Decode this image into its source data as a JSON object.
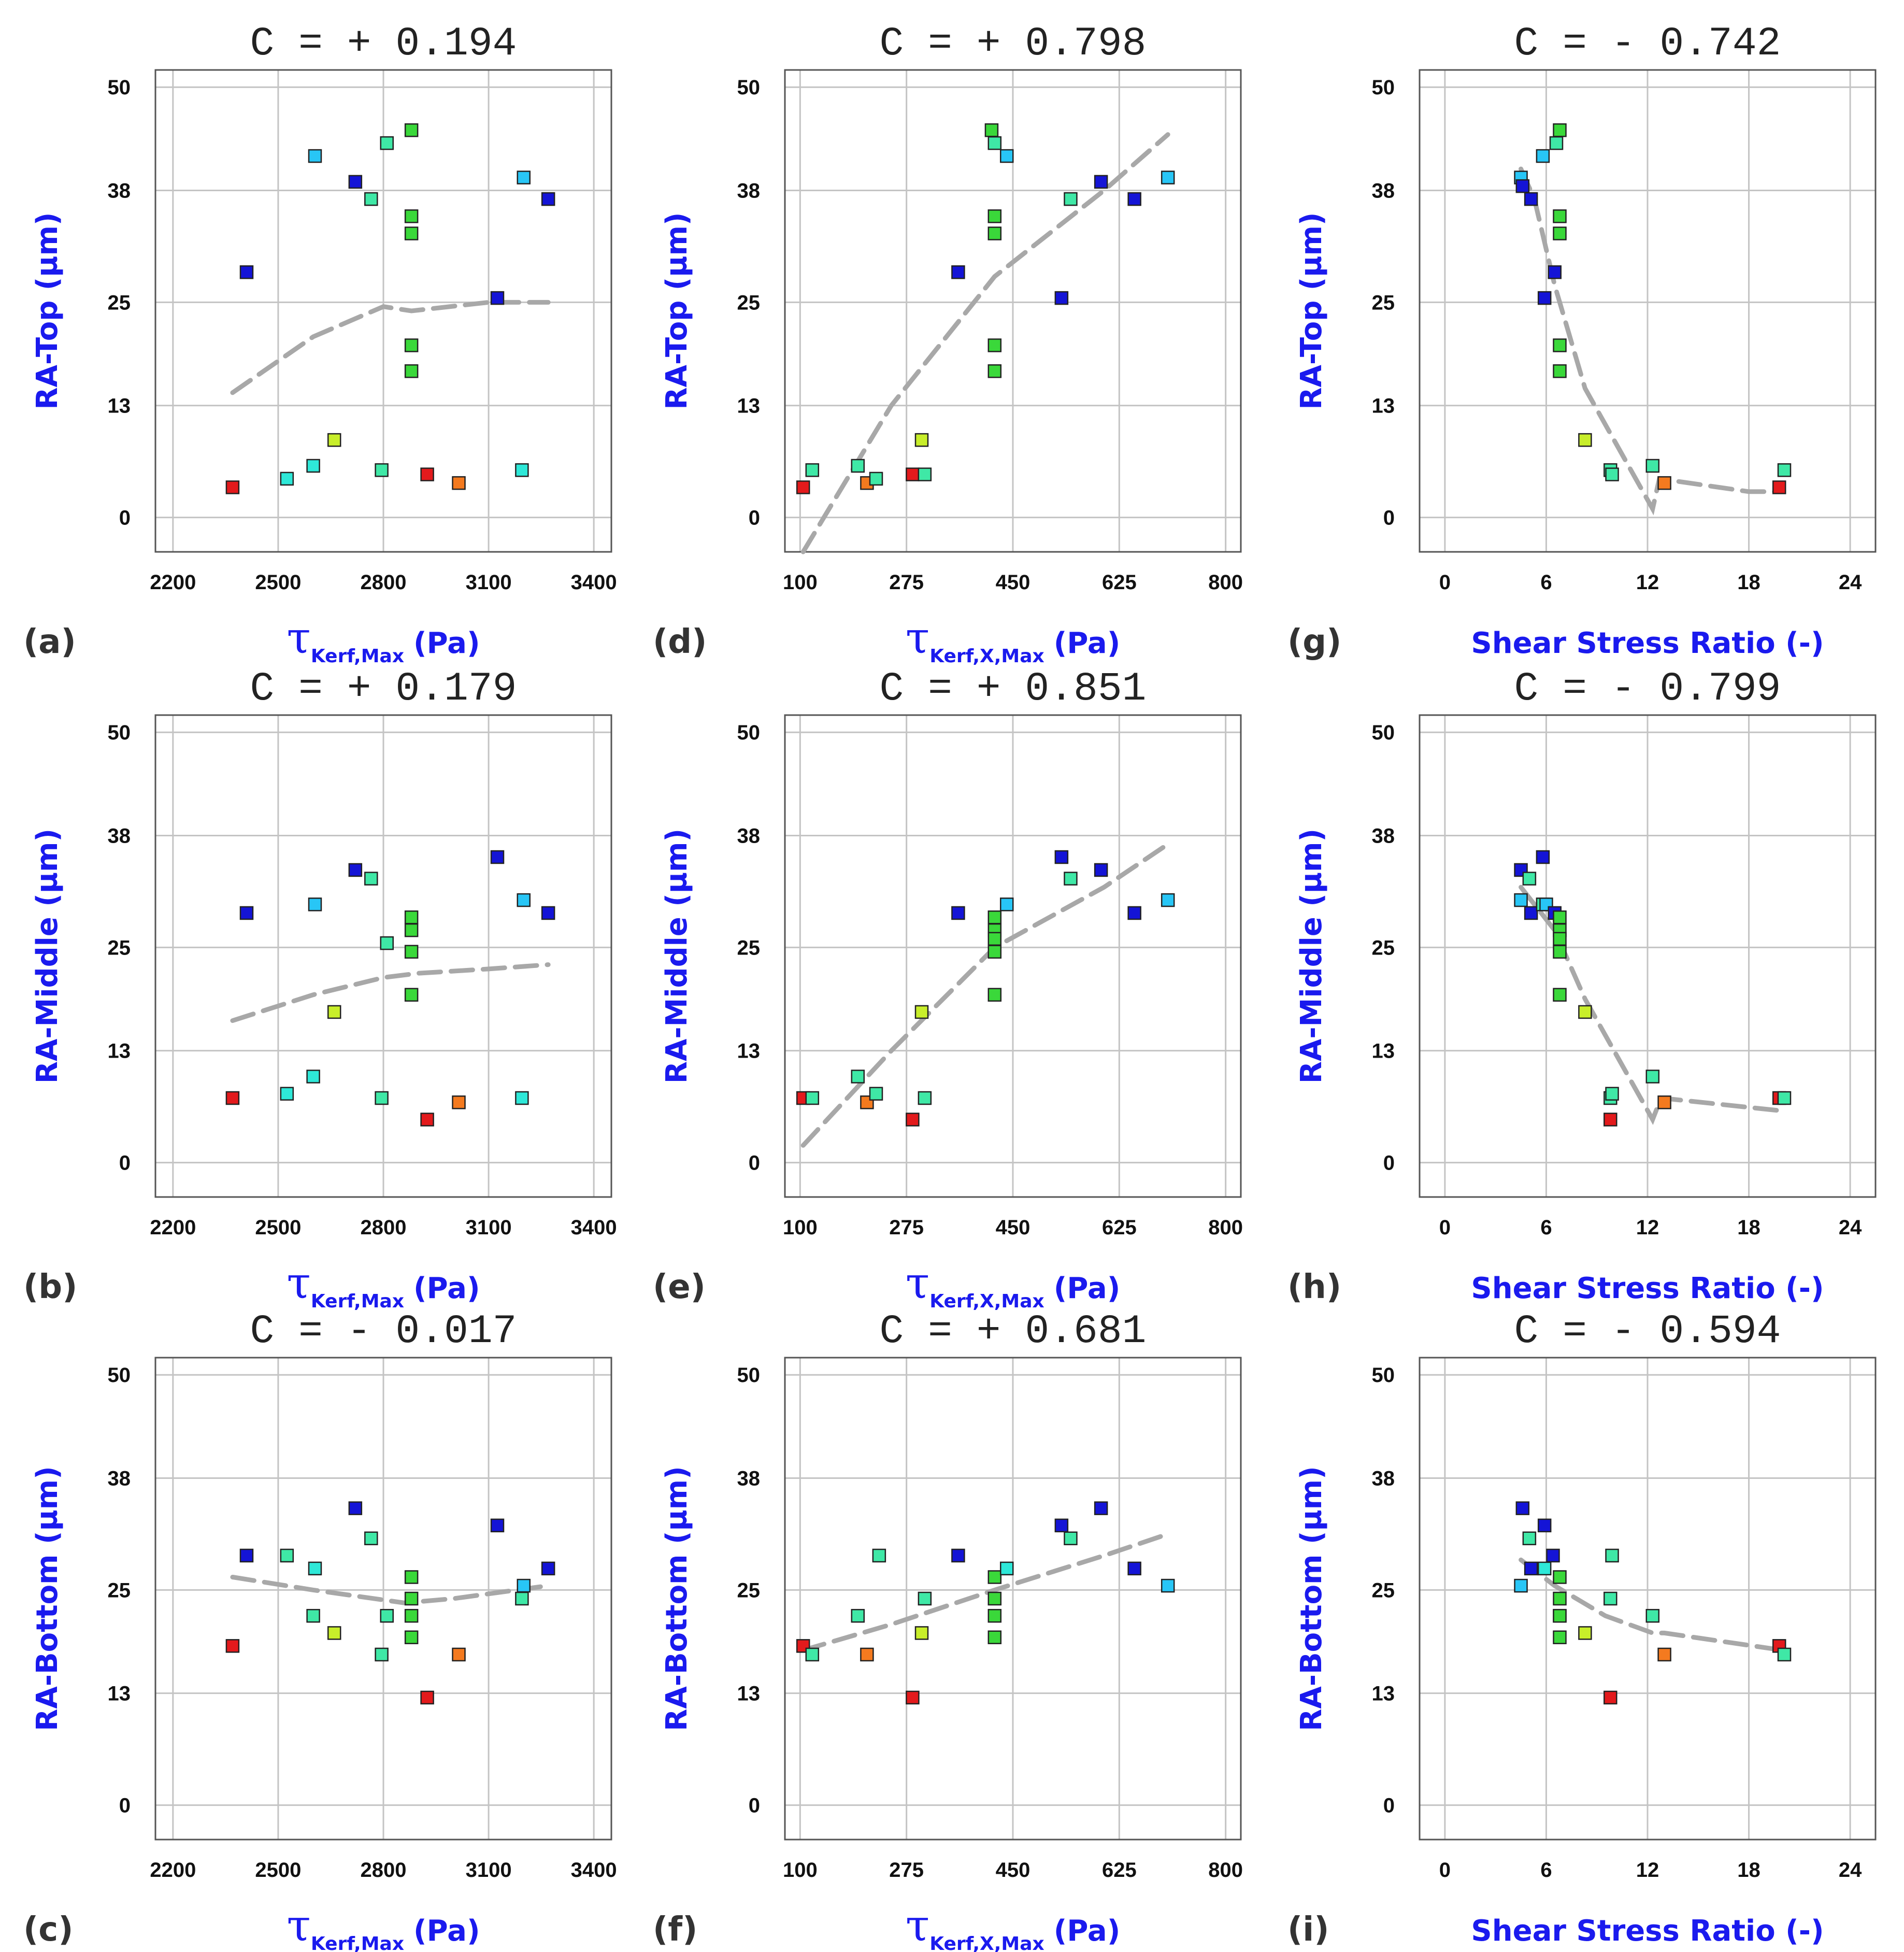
{
  "figure": {
    "x_groups": {
      "kerf_max": {
        "tau": "τ",
        "sub": "Kerf,Max",
        "unit": "(Pa)",
        "ticks": [
          2200,
          2500,
          2800,
          3100,
          3400
        ],
        "xlim": [
          2150,
          3450
        ]
      },
      "kerf_x_max": {
        "tau": "τ",
        "sub": "Kerf,X,Max",
        "unit": "(Pa)",
        "ticks": [
          100,
          275,
          450,
          625,
          800
        ],
        "xlim": [
          75,
          825
        ]
      },
      "ratio": {
        "text": "Shear Stress Ratio (-)",
        "ticks": [
          0,
          6,
          12,
          18,
          24
        ],
        "xlim": [
          -1.5,
          25.5
        ]
      }
    },
    "y_labels": [
      "RA-Top (µm)",
      "RA-Middle (µm)",
      "RA-Bottom (µm)"
    ],
    "y_ticks": [
      0,
      13,
      25,
      38,
      50
    ],
    "ylim": [
      -4,
      52
    ],
    "trend_color": "#a8a8a8"
  },
  "chart_data": [
    {
      "id": "a",
      "label": "(a)",
      "type": "scatter",
      "title": "C = + 0.194",
      "xgroup": "kerf_max",
      "row": 0,
      "points": [
        [
          2370,
          3.5,
          "red"
        ],
        [
          2410,
          28.5,
          "blue"
        ],
        [
          2525,
          4.5,
          "cyan"
        ],
        [
          2600,
          6,
          "cyan"
        ],
        [
          2605,
          42,
          "lightblue"
        ],
        [
          2660,
          9,
          "yellow"
        ],
        [
          2720,
          39,
          "blue"
        ],
        [
          2765,
          37,
          "teal"
        ],
        [
          2795,
          5.5,
          "teal"
        ],
        [
          2810,
          43.5,
          "teal"
        ],
        [
          2880,
          45,
          "green"
        ],
        [
          2880,
          35,
          "green"
        ],
        [
          2880,
          33,
          "green"
        ],
        [
          2880,
          20,
          "green"
        ],
        [
          2880,
          17,
          "green"
        ],
        [
          2925,
          5,
          "red"
        ],
        [
          3015,
          4,
          "orange"
        ],
        [
          3125,
          25.5,
          "blue"
        ],
        [
          3195,
          5.5,
          "cyan"
        ],
        [
          3200,
          39.5,
          "lightblue"
        ],
        [
          3270,
          37,
          "blue"
        ]
      ],
      "trend": [
        [
          2370,
          14.5
        ],
        [
          2600,
          21
        ],
        [
          2800,
          24.5
        ],
        [
          2880,
          24
        ],
        [
          3100,
          25
        ],
        [
          3270,
          25
        ]
      ]
    },
    {
      "id": "b",
      "label": "(b)",
      "type": "scatter",
      "title": "C = + 0.179",
      "xgroup": "kerf_max",
      "row": 1,
      "points": [
        [
          2370,
          7.5,
          "red"
        ],
        [
          2410,
          29,
          "blue"
        ],
        [
          2525,
          8,
          "cyan"
        ],
        [
          2600,
          10,
          "cyan"
        ],
        [
          2605,
          30,
          "lightblue"
        ],
        [
          2660,
          17.5,
          "yellow"
        ],
        [
          2720,
          34,
          "blue"
        ],
        [
          2765,
          33,
          "teal"
        ],
        [
          2795,
          7.5,
          "teal"
        ],
        [
          2810,
          25.5,
          "teal"
        ],
        [
          2880,
          28.5,
          "green"
        ],
        [
          2880,
          27,
          "green"
        ],
        [
          2880,
          24.5,
          "green"
        ],
        [
          2880,
          19.5,
          "green"
        ],
        [
          2925,
          5,
          "red"
        ],
        [
          3015,
          7,
          "orange"
        ],
        [
          3125,
          35.5,
          "blue"
        ],
        [
          3195,
          7.5,
          "cyan"
        ],
        [
          3200,
          30.5,
          "lightblue"
        ],
        [
          3270,
          29,
          "blue"
        ]
      ],
      "trend": [
        [
          2370,
          16.5
        ],
        [
          2600,
          19.5
        ],
        [
          2800,
          21.5
        ],
        [
          2900,
          22
        ],
        [
          3100,
          22.5
        ],
        [
          3270,
          23
        ]
      ]
    },
    {
      "id": "c",
      "label": "(c)",
      "type": "scatter",
      "title": "C = - 0.017",
      "xgroup": "kerf_max",
      "row": 2,
      "points": [
        [
          2370,
          18.5,
          "red"
        ],
        [
          2410,
          29,
          "blue"
        ],
        [
          2525,
          29,
          "teal"
        ],
        [
          2600,
          22,
          "teal"
        ],
        [
          2605,
          27.5,
          "cyan"
        ],
        [
          2660,
          20,
          "yellow"
        ],
        [
          2720,
          34.5,
          "blue"
        ],
        [
          2765,
          31,
          "teal"
        ],
        [
          2795,
          17.5,
          "teal"
        ],
        [
          2810,
          22,
          "teal"
        ],
        [
          2880,
          26.5,
          "green"
        ],
        [
          2880,
          24,
          "green"
        ],
        [
          2880,
          22,
          "green"
        ],
        [
          2880,
          19.5,
          "green"
        ],
        [
          2925,
          12.5,
          "red"
        ],
        [
          3015,
          17.5,
          "orange"
        ],
        [
          3125,
          32.5,
          "blue"
        ],
        [
          3195,
          24,
          "teal"
        ],
        [
          3200,
          25.5,
          "lightblue"
        ],
        [
          3270,
          27.5,
          "blue"
        ]
      ],
      "trend": [
        [
          2370,
          26.5
        ],
        [
          2600,
          25
        ],
        [
          2860,
          23.5
        ],
        [
          3000,
          24
        ],
        [
          3270,
          25.5
        ]
      ]
    },
    {
      "id": "d",
      "label": "(d)",
      "type": "scatter",
      "title": "C = + 0.798",
      "xgroup": "kerf_x_max",
      "row": 0,
      "points": [
        [
          105,
          3.5,
          "red"
        ],
        [
          120,
          5.5,
          "teal"
        ],
        [
          195,
          6,
          "teal"
        ],
        [
          210,
          4,
          "orange"
        ],
        [
          225,
          4.5,
          "teal"
        ],
        [
          285,
          5,
          "red"
        ],
        [
          300,
          9,
          "yellow"
        ],
        [
          305,
          5,
          "teal"
        ],
        [
          360,
          28.5,
          "blue"
        ],
        [
          415,
          45,
          "green"
        ],
        [
          420,
          43.5,
          "teal"
        ],
        [
          420,
          35,
          "green"
        ],
        [
          420,
          33,
          "green"
        ],
        [
          420,
          20,
          "green"
        ],
        [
          420,
          17,
          "green"
        ],
        [
          440,
          42,
          "lightblue"
        ],
        [
          530,
          25.5,
          "blue"
        ],
        [
          545,
          37,
          "teal"
        ],
        [
          595,
          39,
          "blue"
        ],
        [
          650,
          37,
          "blue"
        ],
        [
          705,
          39.5,
          "lightblue"
        ]
      ],
      "trend": [
        [
          105,
          -4
        ],
        [
          250,
          13
        ],
        [
          420,
          28
        ],
        [
          600,
          38
        ],
        [
          705,
          44.5
        ]
      ]
    },
    {
      "id": "e",
      "label": "(e)",
      "type": "scatter",
      "title": "C = + 0.851",
      "xgroup": "kerf_x_max",
      "row": 1,
      "points": [
        [
          105,
          7.5,
          "red"
        ],
        [
          120,
          7.5,
          "teal"
        ],
        [
          195,
          10,
          "teal"
        ],
        [
          210,
          7,
          "orange"
        ],
        [
          225,
          8,
          "teal"
        ],
        [
          285,
          5,
          "red"
        ],
        [
          300,
          17.5,
          "yellow"
        ],
        [
          305,
          7.5,
          "teal"
        ],
        [
          360,
          29,
          "blue"
        ],
        [
          420,
          28.5,
          "green"
        ],
        [
          420,
          27,
          "green"
        ],
        [
          420,
          26,
          "green"
        ],
        [
          420,
          24.5,
          "green"
        ],
        [
          420,
          19.5,
          "green"
        ],
        [
          440,
          30,
          "lightblue"
        ],
        [
          530,
          35.5,
          "blue"
        ],
        [
          545,
          33,
          "teal"
        ],
        [
          595,
          34,
          "blue"
        ],
        [
          650,
          29,
          "blue"
        ],
        [
          705,
          30.5,
          "lightblue"
        ]
      ],
      "trend": [
        [
          105,
          2
        ],
        [
          250,
          13
        ],
        [
          420,
          25
        ],
        [
          600,
          32
        ],
        [
          705,
          37
        ]
      ]
    },
    {
      "id": "f",
      "label": "(f)",
      "type": "scatter",
      "title": "C = + 0.681",
      "xgroup": "kerf_x_max",
      "row": 2,
      "points": [
        [
          105,
          18.5,
          "red"
        ],
        [
          120,
          17.5,
          "teal"
        ],
        [
          195,
          22,
          "teal"
        ],
        [
          210,
          17.5,
          "orange"
        ],
        [
          230,
          29,
          "teal"
        ],
        [
          285,
          12.5,
          "red"
        ],
        [
          300,
          20,
          "yellow"
        ],
        [
          305,
          24,
          "teal"
        ],
        [
          360,
          29,
          "blue"
        ],
        [
          420,
          26.5,
          "green"
        ],
        [
          420,
          24,
          "green"
        ],
        [
          420,
          22,
          "green"
        ],
        [
          420,
          19.5,
          "green"
        ],
        [
          440,
          27.5,
          "cyan"
        ],
        [
          530,
          32.5,
          "blue"
        ],
        [
          545,
          31,
          "teal"
        ],
        [
          595,
          34.5,
          "blue"
        ],
        [
          650,
          27.5,
          "blue"
        ],
        [
          705,
          25.5,
          "lightblue"
        ]
      ],
      "trend": [
        [
          105,
          18
        ],
        [
          250,
          21
        ],
        [
          420,
          25
        ],
        [
          600,
          29
        ],
        [
          705,
          31.5
        ]
      ]
    },
    {
      "id": "g",
      "label": "(g)",
      "type": "scatter",
      "title": "C = - 0.742",
      "xgroup": "ratio",
      "row": 0,
      "points": [
        [
          4.5,
          39.5,
          "lightblue"
        ],
        [
          4.6,
          38.5,
          "blue"
        ],
        [
          5.1,
          37,
          "blue"
        ],
        [
          5.8,
          42,
          "lightblue"
        ],
        [
          5.9,
          25.5,
          "blue"
        ],
        [
          6.5,
          28.5,
          "blue"
        ],
        [
          6.6,
          43.5,
          "teal"
        ],
        [
          6.8,
          45,
          "green"
        ],
        [
          6.8,
          35,
          "green"
        ],
        [
          6.8,
          33,
          "green"
        ],
        [
          6.8,
          20,
          "green"
        ],
        [
          6.8,
          17,
          "green"
        ],
        [
          8.3,
          9,
          "yellow"
        ],
        [
          9.8,
          5.5,
          "teal"
        ],
        [
          9.9,
          5,
          "teal"
        ],
        [
          12.3,
          6,
          "teal"
        ],
        [
          13.0,
          4,
          "orange"
        ],
        [
          19.8,
          3.5,
          "red"
        ],
        [
          20.1,
          5.5,
          "teal"
        ]
      ],
      "trend": [
        [
          4.5,
          40.5
        ],
        [
          5.3,
          37
        ],
        [
          6.5,
          27
        ],
        [
          8.3,
          15
        ],
        [
          12.3,
          1
        ],
        [
          12.7,
          4.5
        ],
        [
          18,
          3
        ],
        [
          20,
          3
        ]
      ]
    },
    {
      "id": "h",
      "label": "(h)",
      "type": "scatter",
      "title": "C = - 0.799",
      "xgroup": "ratio",
      "row": 1,
      "points": [
        [
          4.5,
          34,
          "blue"
        ],
        [
          4.5,
          30.5,
          "lightblue"
        ],
        [
          5.0,
          33,
          "teal"
        ],
        [
          5.1,
          29,
          "blue"
        ],
        [
          5.8,
          35.5,
          "blue"
        ],
        [
          5.8,
          30,
          "teal"
        ],
        [
          6.0,
          30,
          "lightblue"
        ],
        [
          6.5,
          29,
          "blue"
        ],
        [
          6.8,
          28.5,
          "green"
        ],
        [
          6.8,
          27,
          "green"
        ],
        [
          6.8,
          26,
          "green"
        ],
        [
          6.8,
          24.5,
          "green"
        ],
        [
          6.8,
          19.5,
          "green"
        ],
        [
          8.3,
          17.5,
          "yellow"
        ],
        [
          9.8,
          7.5,
          "teal"
        ],
        [
          9.9,
          8,
          "teal"
        ],
        [
          9.8,
          5,
          "red"
        ],
        [
          12.3,
          10,
          "teal"
        ],
        [
          13.0,
          7,
          "orange"
        ],
        [
          19.8,
          7.5,
          "red"
        ],
        [
          20.1,
          7.5,
          "teal"
        ]
      ],
      "trend": [
        [
          4.5,
          32
        ],
        [
          6.5,
          27
        ],
        [
          8.3,
          19
        ],
        [
          12.3,
          5
        ],
        [
          12.8,
          7.5
        ],
        [
          20,
          6
        ]
      ]
    },
    {
      "id": "i",
      "label": "(i)",
      "type": "scatter",
      "title": "C = - 0.594",
      "xgroup": "ratio",
      "row": 2,
      "points": [
        [
          4.5,
          25.5,
          "lightblue"
        ],
        [
          4.6,
          34.5,
          "blue"
        ],
        [
          5.0,
          31,
          "teal"
        ],
        [
          5.1,
          27.5,
          "blue"
        ],
        [
          5.9,
          32.5,
          "blue"
        ],
        [
          5.9,
          27.5,
          "cyan"
        ],
        [
          6.4,
          29,
          "blue"
        ],
        [
          6.8,
          26.5,
          "green"
        ],
        [
          6.8,
          24,
          "green"
        ],
        [
          6.8,
          22,
          "green"
        ],
        [
          6.8,
          22,
          "green"
        ],
        [
          6.8,
          19.5,
          "green"
        ],
        [
          8.3,
          20,
          "yellow"
        ],
        [
          9.8,
          24,
          "teal"
        ],
        [
          9.9,
          29,
          "teal"
        ],
        [
          9.8,
          12.5,
          "red"
        ],
        [
          12.3,
          22,
          "teal"
        ],
        [
          13.0,
          17.5,
          "orange"
        ],
        [
          19.8,
          18.5,
          "red"
        ],
        [
          20.1,
          17.5,
          "teal"
        ]
      ],
      "trend": [
        [
          4.5,
          28.5
        ],
        [
          6.5,
          25.5
        ],
        [
          9.5,
          22
        ],
        [
          12.3,
          20
        ],
        [
          13,
          20
        ],
        [
          20,
          18
        ]
      ]
    }
  ]
}
